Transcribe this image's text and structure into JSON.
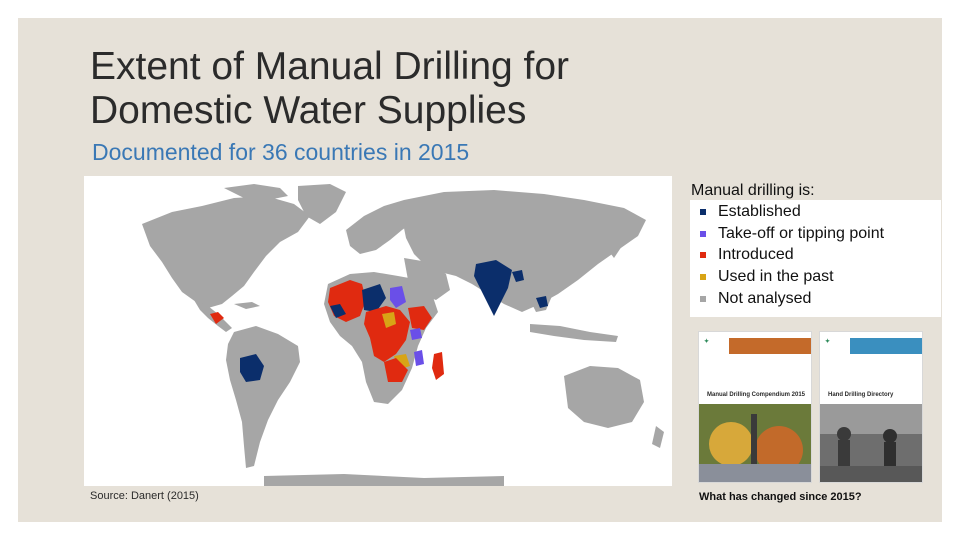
{
  "title": "Extent of Manual Drilling for\nDomestic Water Supplies",
  "subtitle": "Documented for 36 countries in 2015",
  "source": "Source: Danert (2015)",
  "legend": {
    "title": "Manual drilling is:",
    "items": [
      {
        "label": "Established",
        "color": "#0b2e6b"
      },
      {
        "label": "Take-off or tipping point",
        "color": "#6a4fe8"
      },
      {
        "label": "Introduced",
        "color": "#e02a10"
      },
      {
        "label": "Used in the past",
        "color": "#d8a416"
      },
      {
        "label": "Not analysed",
        "color": "#a6a6a6"
      }
    ]
  },
  "colors": {
    "slide_background": "#e6e1d8",
    "subtitle": "#3a78b5",
    "land": "#a6a6a6",
    "ocean": "#ffffff"
  },
  "covers": [
    {
      "title": "Manual Drilling Compendium 2015",
      "icon": "report-cover-photo-drilling"
    },
    {
      "title": "Hand Drilling Directory",
      "icon": "report-cover-photo-field"
    }
  ],
  "question": "What has changed since 2015?"
}
